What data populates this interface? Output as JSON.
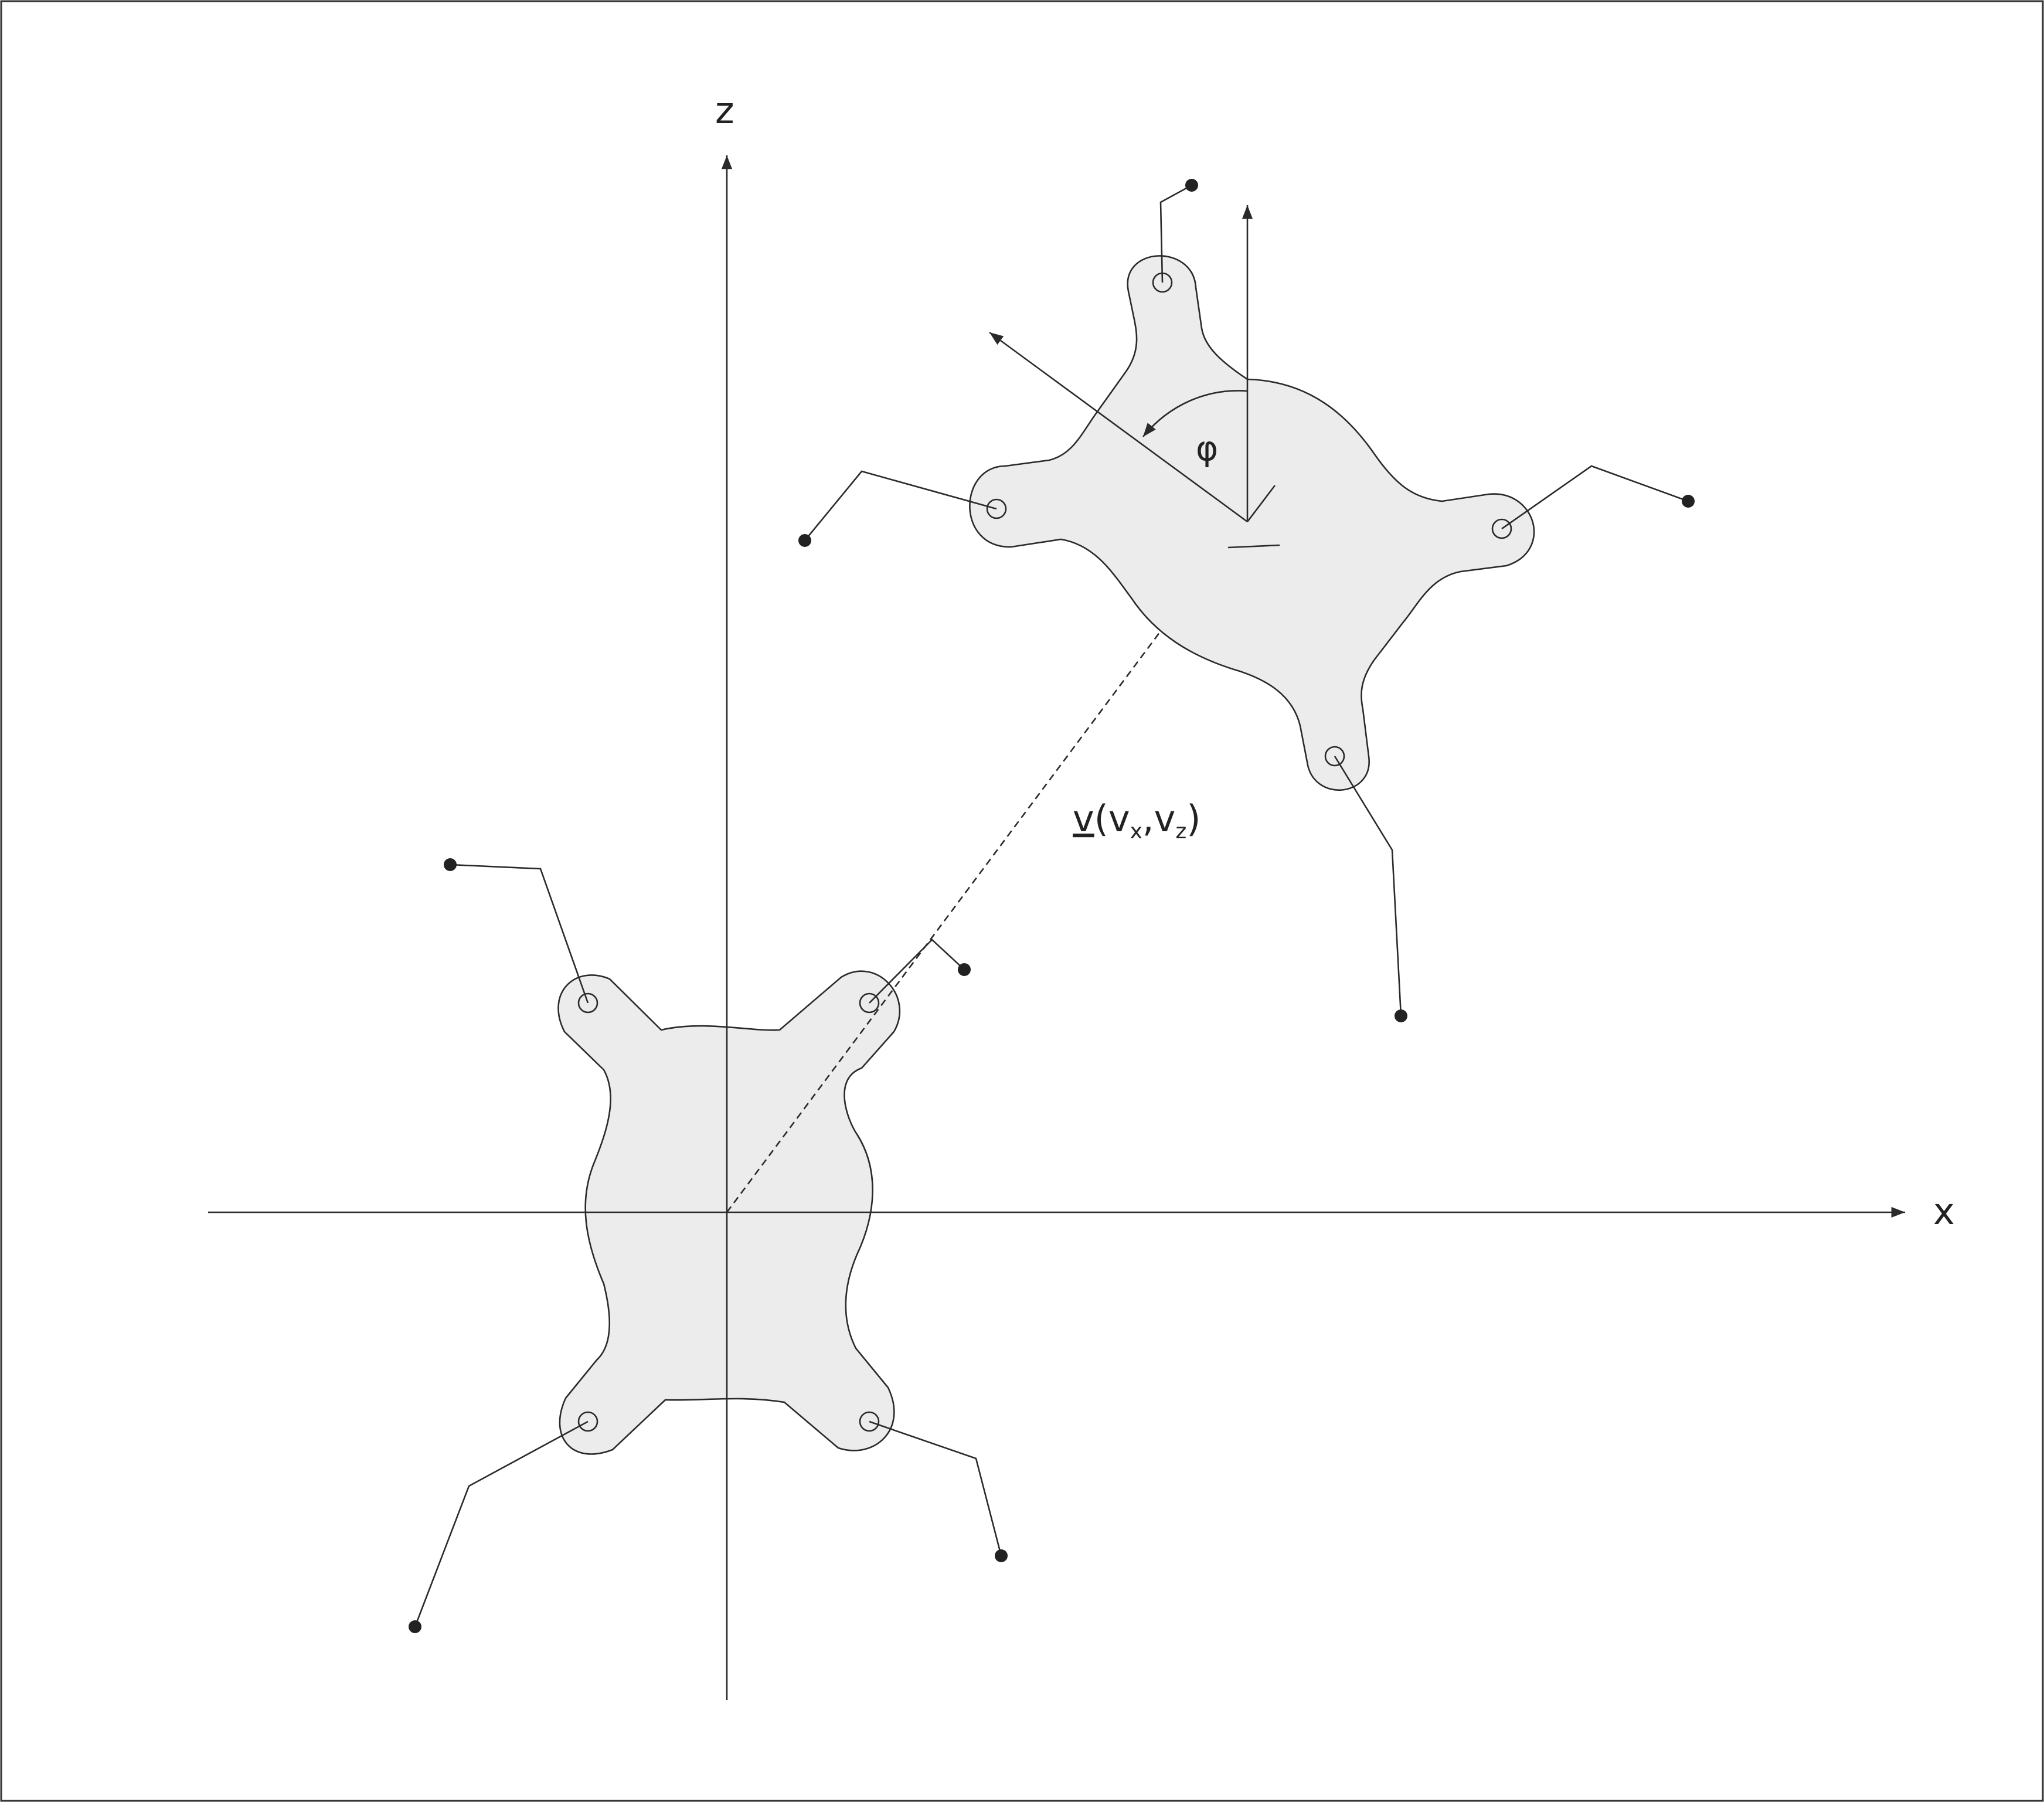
{
  "axes": {
    "x_label": "x",
    "z_label": "z"
  },
  "angle": {
    "symbol": "φ"
  },
  "vector": {
    "name": "v",
    "open": "(",
    "comp_x_base": "v",
    "comp_x_sub": "x",
    "separator": ",",
    "comp_z_base": "v",
    "comp_z_sub": "z",
    "close": ")"
  },
  "colors": {
    "body_fill": "#ebeceb",
    "stroke": "#2a2a2a",
    "background": "#ffffff"
  }
}
